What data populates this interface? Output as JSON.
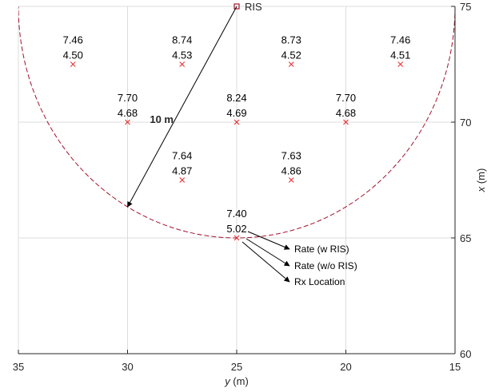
{
  "chart_data": {
    "type": "scatter",
    "xlabel_var": "y",
    "xlabel_unit": " (m)",
    "ylabel_var": "x",
    "ylabel_unit": " (m)",
    "xlim": [
      35,
      15
    ],
    "ylim": [
      60,
      75
    ],
    "x_reversed": true,
    "y_axis_position": "right",
    "grid": true,
    "xticks": [
      "35",
      "30",
      "25",
      "20",
      "15"
    ],
    "yticks": [
      "60",
      "65",
      "70",
      "75"
    ],
    "xtick_values": [
      35,
      30,
      25,
      20,
      15
    ],
    "ytick_values": [
      60,
      65,
      70,
      75
    ],
    "ris": {
      "label": "RIS",
      "y": 25,
      "x": 75
    },
    "circle": {
      "center_y": 25,
      "center_x": 75,
      "radius": 10
    },
    "radius_label": "10 m",
    "radius_arrow_end": {
      "y": 30,
      "x": 66.34
    },
    "points": [
      {
        "y": 32.5,
        "x": 72.5,
        "rate_w": "7.46",
        "rate_wo": "4.50"
      },
      {
        "y": 27.5,
        "x": 72.5,
        "rate_w": "8.74",
        "rate_wo": "4.53"
      },
      {
        "y": 22.5,
        "x": 72.5,
        "rate_w": "8.73",
        "rate_wo": "4.52"
      },
      {
        "y": 17.5,
        "x": 72.5,
        "rate_w": "7.46",
        "rate_wo": "4.51"
      },
      {
        "y": 30,
        "x": 70,
        "rate_w": "7.70",
        "rate_wo": "4.68"
      },
      {
        "y": 25,
        "x": 70,
        "rate_w": "8.24",
        "rate_wo": "4.69"
      },
      {
        "y": 20,
        "x": 70,
        "rate_w": "7.70",
        "rate_wo": "4.68"
      },
      {
        "y": 27.5,
        "x": 67.5,
        "rate_w": "7.64",
        "rate_wo": "4.87"
      },
      {
        "y": 22.5,
        "x": 67.5,
        "rate_w": "7.63",
        "rate_wo": "4.86"
      },
      {
        "y": 25,
        "x": 65,
        "rate_w": "7.40",
        "rate_wo": "5.02"
      }
    ],
    "legend_annotations": [
      "Rate (w RIS)",
      "Rate (w/o RIS)",
      "Rx Location"
    ],
    "colors": {
      "marker": "#e8262a",
      "circle": "#a2142f",
      "grid": "#dcdcdc",
      "axis": "#262626"
    }
  }
}
